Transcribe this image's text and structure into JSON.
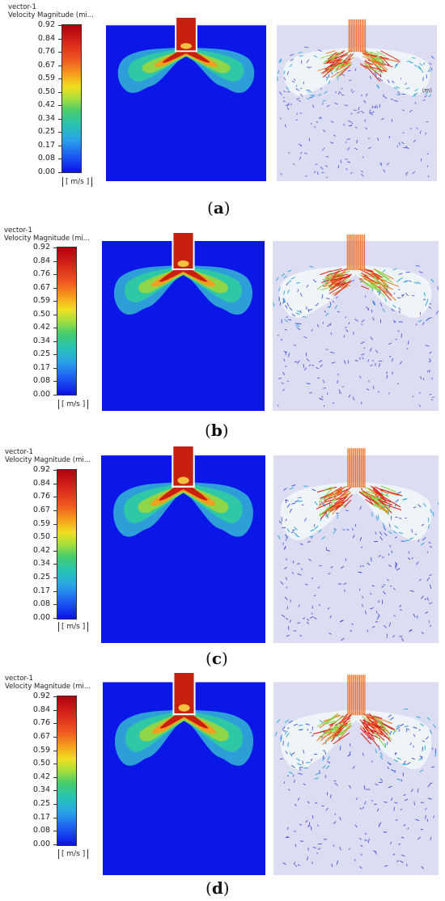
{
  "legend": {
    "title_line1": "vector-1",
    "title_line2": "Velocity Magnitude (mi...",
    "ticks": [
      "0.92",
      "0.84",
      "0.76",
      "0.67",
      "0.59",
      "0.50",
      "0.42",
      "0.34",
      "0.25",
      "0.17",
      "0.08",
      "0.00"
    ],
    "unit": "[ m/s ]",
    "color_scale": [
      "#b0000e",
      "#d8261a",
      "#f05a22",
      "#f7a21d",
      "#f1df1f",
      "#a8df3e",
      "#49cc6a",
      "#27c3b4",
      "#2aa2e8",
      "#1c59f3",
      "#0d12e6"
    ]
  },
  "colors": {
    "background_fluid": "#0a17e6",
    "vector_background": "#dcdcf2",
    "jet_core": "#c8200e",
    "jet_outer": "#f06a1e"
  },
  "panels": [
    {
      "id": "a",
      "open": "(",
      "letter": "a",
      "close": ")",
      "vector_label": "(m)"
    },
    {
      "id": "b",
      "open": "(",
      "letter": "b",
      "close": ")",
      "vector_label": ""
    },
    {
      "id": "c",
      "open": "(",
      "letter": "c",
      "close": ")",
      "vector_label": ""
    },
    {
      "id": "d",
      "open": "(",
      "letter": "d",
      "close": ")",
      "vector_label": ""
    }
  ]
}
